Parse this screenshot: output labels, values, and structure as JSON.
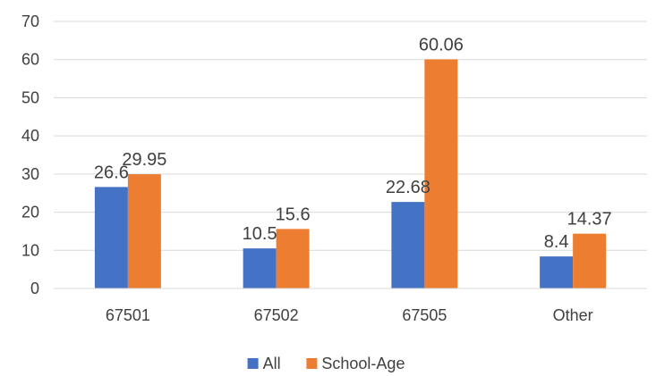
{
  "chart_data": {
    "type": "bar",
    "title": "",
    "xlabel": "",
    "ylabel": "",
    "categories": [
      "67501",
      "67502",
      "67505",
      "Other"
    ],
    "series": [
      {
        "name": "All",
        "color": "#4472c4",
        "values": [
          26.6,
          10.5,
          22.68,
          8.4
        ],
        "labels": [
          "26.6",
          "10.5",
          "22.68",
          "8.4"
        ]
      },
      {
        "name": "School-Age",
        "color": "#ed7d31",
        "values": [
          29.95,
          15.6,
          60.06,
          14.37
        ],
        "labels": [
          "29.95",
          "15.6",
          "60.06",
          "14.37"
        ]
      }
    ],
    "ylim": [
      0,
      70
    ],
    "yticks": [
      0,
      10,
      20,
      30,
      40,
      50,
      60,
      70
    ],
    "grid": true,
    "legend_position": "bottom",
    "gridline_color": "#d9d9d9",
    "text_color": "#404040"
  }
}
